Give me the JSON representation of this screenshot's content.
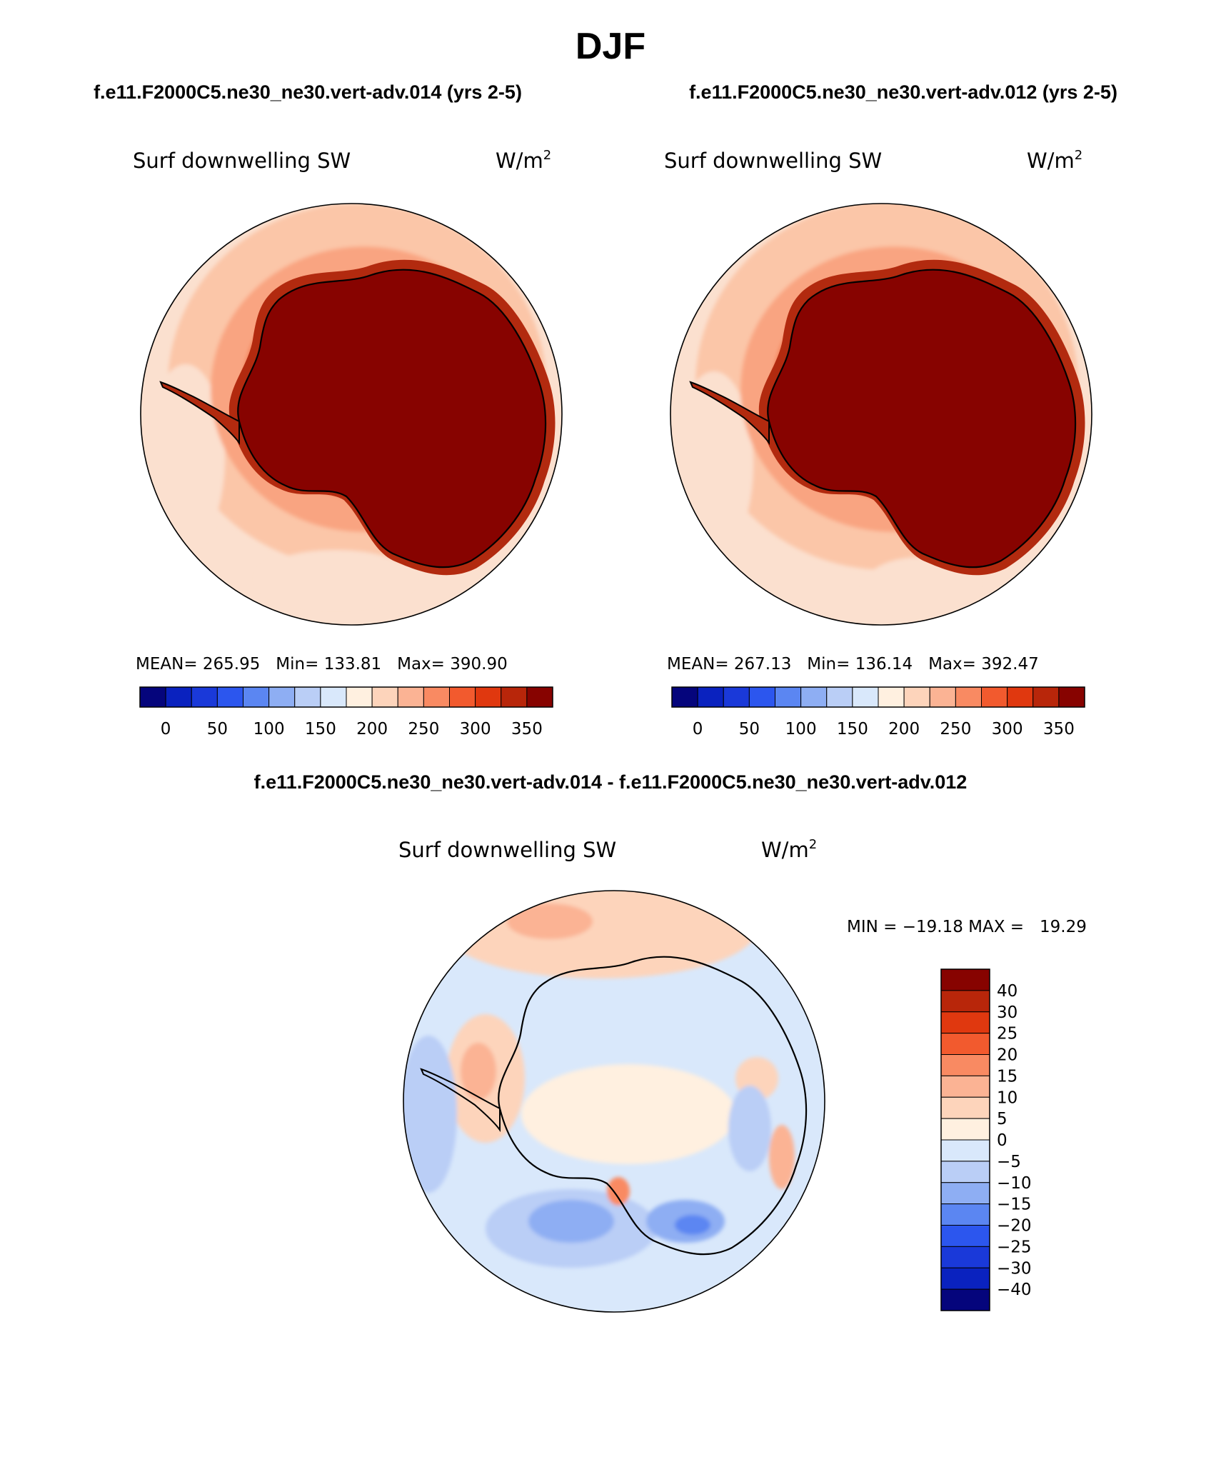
{
  "page_title": "DJF",
  "case_a": "f.e11.F2000C5.ne30_ne30.vert-adv.014 (yrs 2-5)",
  "case_b": "f.e11.F2000C5.ne30_ne30.vert-adv.012 (yrs 2-5)",
  "diff_title": "f.e11.F2000C5.ne30_ne30.vert-adv.014 - f.e11.F2000C5.ne30_ne30.vert-adv.012",
  "variable": "Surf downwelling SW",
  "units_base": "W/m",
  "units_exp": "2",
  "panels": [
    {
      "stats": "MEAN= 265.95   Min= 133.81   Max= 390.90"
    },
    {
      "stats": "MEAN= 267.13   Min= 136.14   Max= 392.47"
    }
  ],
  "diff_stats": "MIN = −19.18 MAX =   19.29",
  "colors": {
    "ocean_pale": "#fbe0cf",
    "ocean_mid": "#fbc6a8",
    "ocean_salmon": "#f9a481",
    "coast_orange": "#f37a50",
    "coast_red": "#e34a26",
    "ice_dark": "#b22a0f",
    "ice_max": "#870300",
    "diff_blue_light": "#cfe2f7",
    "diff_blue": "#b8cff2"
  },
  "abs_colorbar": {
    "colors": [
      "#05057c",
      "#0a22bf",
      "#1a39d9",
      "#2c56ee",
      "#5b86f2",
      "#8eaef3",
      "#bacef6",
      "#d9e8fb",
      "#fff0e0",
      "#fdd4bb",
      "#fbb394",
      "#f98a62",
      "#f25a2e",
      "#e0380f",
      "#b8260a",
      "#870300"
    ],
    "labels": [
      "0",
      "50",
      "100",
      "150",
      "200",
      "250",
      "300",
      "350"
    ]
  },
  "diff_colorbar": {
    "colors": [
      "#870300",
      "#b8260a",
      "#e0380f",
      "#f25a2e",
      "#f98a62",
      "#fbb394",
      "#fdd4bb",
      "#fff0e0",
      "#d9e8fb",
      "#bacef6",
      "#8eaef3",
      "#5b86f2",
      "#2c56ee",
      "#1a39d9",
      "#0a22bf",
      "#05057c"
    ],
    "labels": [
      "40",
      "30",
      "25",
      "20",
      "15",
      "10",
      "5",
      "0",
      "−5",
      "−10",
      "−15",
      "−20",
      "−25",
      "−30",
      "−40"
    ]
  }
}
